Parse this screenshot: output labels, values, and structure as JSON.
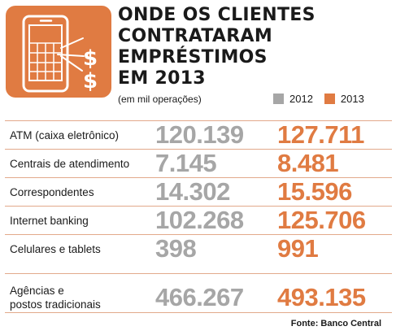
{
  "header": {
    "title_lines": [
      "ONDE OS CLIENTES",
      "CONTRATARAM",
      "EMPRÉSTIMOS",
      "EM 2013"
    ],
    "subtitle": "(em mil operações)"
  },
  "colors": {
    "y2012": "#a6a6a6",
    "y2013": "#e07b42",
    "accent": "#e07b42",
    "line": "#e2a98b"
  },
  "icon": {
    "name": "phone-money-icon"
  },
  "chart_data": {
    "type": "table",
    "title": "ONDE OS CLIENTES CONTRATARAM EMPRÉSTIMOS EM 2013",
    "subtitle": "(em mil operações)",
    "series": [
      {
        "name": "2012",
        "values": [
          "120.139",
          "7.145",
          "14.302",
          "102.268",
          "398",
          "466.267"
        ]
      },
      {
        "name": "2013",
        "values": [
          "127.711",
          "8.481",
          "15.596",
          "125.706",
          "991",
          "493.135"
        ]
      }
    ],
    "categories": [
      "ATM (caixa eletrônico)",
      "Centrais de atendimento",
      "Correspondentes",
      "Internet banking",
      "Celulares e tablets",
      "Agências e postos tradicionais"
    ],
    "legend": [
      "2012",
      "2013"
    ]
  },
  "rows": [
    {
      "label": "ATM (caixa eletrônico)",
      "v2012": "120.139",
      "v2013": "127.711"
    },
    {
      "label": "Centrais de atendimento",
      "v2012": "7.145",
      "v2013": "8.481"
    },
    {
      "label": "Correspondentes",
      "v2012": "14.302",
      "v2013": "15.596"
    },
    {
      "label": "Internet banking",
      "v2012": "102.268",
      "v2013": "125.706"
    },
    {
      "label": "Celulares e tablets",
      "v2012": "398",
      "v2013": "991"
    },
    {
      "label_lines": [
        "Agências e",
        "postos tradicionais"
      ],
      "v2012": "466.267",
      "v2013": "493.135"
    }
  ],
  "legend": {
    "label_2012": "2012",
    "label_2013": "2013"
  },
  "source": "Fonte: Banco Central"
}
